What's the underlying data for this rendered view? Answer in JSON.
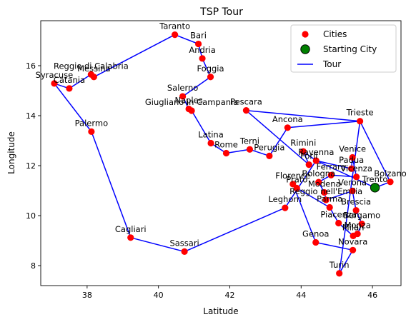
{
  "chart_data": {
    "type": "scatter",
    "title": "TSP Tour",
    "xlabel": "Latitude",
    "ylabel": "Longitude",
    "xlim": [
      36.7,
      46.8
    ],
    "ylim": [
      7.2,
      17.8
    ],
    "xticks": [
      38,
      40,
      42,
      44,
      46
    ],
    "yticks": [
      8,
      10,
      12,
      14,
      16
    ],
    "grid": false,
    "legend": {
      "position": "top-right",
      "entries": [
        {
          "label": "Cities",
          "kind": "marker",
          "color": "#ff0000"
        },
        {
          "label": "Starting City",
          "kind": "big-marker",
          "color": "#008000"
        },
        {
          "label": "Tour",
          "kind": "line",
          "color": "#0000ff"
        }
      ]
    },
    "colors": {
      "cities": "#ff0000",
      "start": "#008000",
      "tour": "#0000ff"
    },
    "starting_city": {
      "name": "Trento",
      "x": 46.07,
      "y": 11.12
    },
    "cities": [
      {
        "name": "Taranto",
        "x": 40.46,
        "y": 17.24
      },
      {
        "name": "Bari",
        "x": 41.12,
        "y": 16.87
      },
      {
        "name": "Andria",
        "x": 41.23,
        "y": 16.29
      },
      {
        "name": "Foggia",
        "x": 41.46,
        "y": 15.55
      },
      {
        "name": "Salerno",
        "x": 40.68,
        "y": 14.77
      },
      {
        "name": "Giugliano in Campania",
        "x": 40.93,
        "y": 14.2
      },
      {
        "name": "Naples",
        "x": 40.85,
        "y": 14.27
      },
      {
        "name": "Pescara",
        "x": 42.46,
        "y": 14.21
      },
      {
        "name": "Trieste",
        "x": 45.65,
        "y": 13.78
      },
      {
        "name": "Ancona",
        "x": 43.62,
        "y": 13.52
      },
      {
        "name": "Latina",
        "x": 41.47,
        "y": 12.9
      },
      {
        "name": "Rome",
        "x": 41.9,
        "y": 12.5
      },
      {
        "name": "Terni",
        "x": 42.56,
        "y": 12.65
      },
      {
        "name": "Perugia",
        "x": 43.11,
        "y": 12.39
      },
      {
        "name": "Rimini",
        "x": 44.06,
        "y": 12.57
      },
      {
        "name": "Forlì",
        "x": 44.22,
        "y": 12.04
      },
      {
        "name": "Ravenna",
        "x": 44.42,
        "y": 12.2
      },
      {
        "name": "Venice",
        "x": 45.44,
        "y": 12.33
      },
      {
        "name": "Padua",
        "x": 45.41,
        "y": 11.88
      },
      {
        "name": "Vicenza",
        "x": 45.55,
        "y": 11.55
      },
      {
        "name": "Ferrara",
        "x": 44.84,
        "y": 11.62
      },
      {
        "name": "Bolzano",
        "x": 46.5,
        "y": 11.35
      },
      {
        "name": "Bologna",
        "x": 44.49,
        "y": 11.34
      },
      {
        "name": "Prato",
        "x": 43.88,
        "y": 11.1
      },
      {
        "name": "Florence",
        "x": 43.77,
        "y": 11.26
      },
      {
        "name": "Modena",
        "x": 44.65,
        "y": 10.93
      },
      {
        "name": "Reggio nell'Emilia",
        "x": 44.7,
        "y": 10.63
      },
      {
        "name": "Verona",
        "x": 45.44,
        "y": 10.99
      },
      {
        "name": "Parma",
        "x": 44.8,
        "y": 10.33
      },
      {
        "name": "Brescia",
        "x": 45.54,
        "y": 10.21
      },
      {
        "name": "Leghorn",
        "x": 43.55,
        "y": 10.31
      },
      {
        "name": "Bergamo",
        "x": 45.7,
        "y": 9.67
      },
      {
        "name": "Piacenza",
        "x": 45.05,
        "y": 9.7
      },
      {
        "name": "Monza",
        "x": 45.58,
        "y": 9.27
      },
      {
        "name": "Milan",
        "x": 45.46,
        "y": 9.19
      },
      {
        "name": "Genoa",
        "x": 44.41,
        "y": 8.93
      },
      {
        "name": "Novara",
        "x": 45.45,
        "y": 8.62
      },
      {
        "name": "Turin",
        "x": 45.07,
        "y": 7.69
      },
      {
        "name": "Sassari",
        "x": 40.73,
        "y": 8.56
      },
      {
        "name": "Cagliari",
        "x": 39.22,
        "y": 9.12
      },
      {
        "name": "Palermo",
        "x": 38.12,
        "y": 13.36
      },
      {
        "name": "Syracuse",
        "x": 37.08,
        "y": 15.29
      },
      {
        "name": "Catania",
        "x": 37.5,
        "y": 15.09
      },
      {
        "name": "Reggio di Calabria",
        "x": 38.11,
        "y": 15.65
      },
      {
        "name": "Messina",
        "x": 38.19,
        "y": 15.55
      }
    ],
    "tour": [
      [
        46.07,
        11.12
      ],
      [
        46.5,
        11.35
      ],
      [
        45.65,
        13.78
      ],
      [
        42.46,
        14.21
      ],
      [
        44.22,
        12.04
      ],
      [
        44.06,
        12.57
      ],
      [
        44.42,
        12.2
      ],
      [
        45.41,
        11.88
      ],
      [
        45.44,
        12.33
      ],
      [
        45.55,
        11.55
      ],
      [
        44.84,
        11.62
      ],
      [
        44.49,
        11.34
      ],
      [
        44.65,
        10.93
      ],
      [
        44.7,
        10.63
      ],
      [
        45.44,
        10.99
      ],
      [
        45.54,
        10.21
      ],
      [
        45.7,
        9.67
      ],
      [
        45.58,
        9.27
      ],
      [
        45.46,
        9.19
      ],
      [
        45.05,
        9.7
      ],
      [
        44.8,
        10.33
      ],
      [
        43.88,
        11.1
      ],
      [
        43.77,
        11.26
      ],
      [
        44.41,
        8.93
      ],
      [
        45.45,
        8.62
      ],
      [
        45.07,
        7.69
      ],
      [
        45.65,
        13.78
      ],
      [
        43.62,
        13.52
      ],
      [
        43.11,
        12.39
      ],
      [
        42.56,
        12.65
      ],
      [
        41.9,
        12.5
      ],
      [
        41.47,
        12.9
      ],
      [
        40.93,
        14.2
      ],
      [
        40.85,
        14.27
      ],
      [
        40.68,
        14.77
      ],
      [
        41.46,
        15.55
      ],
      [
        41.23,
        16.29
      ],
      [
        41.12,
        16.87
      ],
      [
        40.46,
        17.24
      ],
      [
        38.19,
        15.55
      ],
      [
        38.11,
        15.65
      ],
      [
        37.5,
        15.09
      ],
      [
        37.08,
        15.29
      ],
      [
        38.12,
        13.36
      ],
      [
        39.22,
        9.12
      ],
      [
        40.73,
        8.56
      ],
      [
        43.55,
        10.31
      ],
      [
        44.42,
        12.2
      ],
      [
        46.07,
        11.12
      ]
    ]
  }
}
